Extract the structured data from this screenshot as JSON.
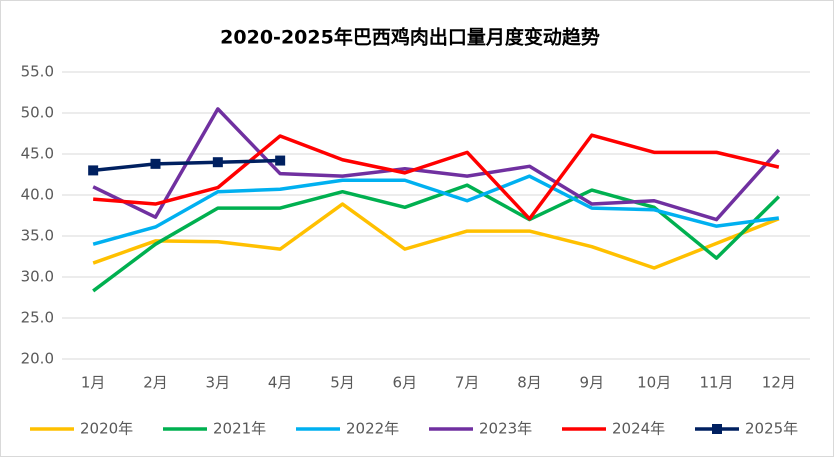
{
  "chart_data": {
    "type": "line",
    "title": "2020-2025年巴西鸡肉出口量月度变动趋势",
    "categories": [
      "1月",
      "2月",
      "3月",
      "4月",
      "5月",
      "6月",
      "7月",
      "8月",
      "9月",
      "10月",
      "11月",
      "12月"
    ],
    "series": [
      {
        "name": "2020年",
        "color": "#ffc000",
        "values": [
          31.7,
          34.4,
          34.3,
          33.4,
          38.9,
          33.4,
          35.6,
          35.6,
          33.7,
          31.1,
          34.1,
          37.1
        ]
      },
      {
        "name": "2021年",
        "color": "#00b050",
        "values": [
          28.3,
          34.0,
          38.4,
          38.4,
          40.4,
          38.5,
          41.2,
          37.0,
          40.6,
          38.5,
          32.3,
          39.8
        ]
      },
      {
        "name": "2022年",
        "color": "#00b0f0",
        "values": [
          34.0,
          36.1,
          40.4,
          40.7,
          41.8,
          41.8,
          39.3,
          42.3,
          38.4,
          38.2,
          36.2,
          37.2
        ]
      },
      {
        "name": "2023年",
        "color": "#7030a0",
        "values": [
          41.0,
          37.3,
          50.5,
          42.6,
          42.3,
          43.2,
          42.3,
          43.5,
          38.9,
          39.3,
          37.0,
          45.5
        ]
      },
      {
        "name": "2024年",
        "color": "#ff0000",
        "values": [
          39.5,
          38.9,
          40.9,
          47.2,
          44.3,
          42.7,
          45.2,
          37.1,
          47.3,
          45.2,
          45.2,
          43.4
        ]
      },
      {
        "name": "2025年",
        "color": "#002060",
        "marker": "square",
        "values": [
          43.0,
          43.8,
          44.0,
          44.2,
          null,
          null,
          null,
          null,
          null,
          null,
          null,
          null
        ]
      }
    ],
    "ylim": [
      20,
      55
    ],
    "yticks": [
      {
        "value": 20,
        "label": "20.0"
      },
      {
        "value": 25,
        "label": "25.0"
      },
      {
        "value": 30,
        "label": "30.0"
      },
      {
        "value": 35,
        "label": "35.0"
      },
      {
        "value": 40,
        "label": "40.0"
      },
      {
        "value": 45,
        "label": "45.0"
      },
      {
        "value": 50,
        "label": "50.0"
      },
      {
        "value": 55,
        "label": "55.0"
      }
    ],
    "grid": true,
    "legend": "bottom"
  }
}
